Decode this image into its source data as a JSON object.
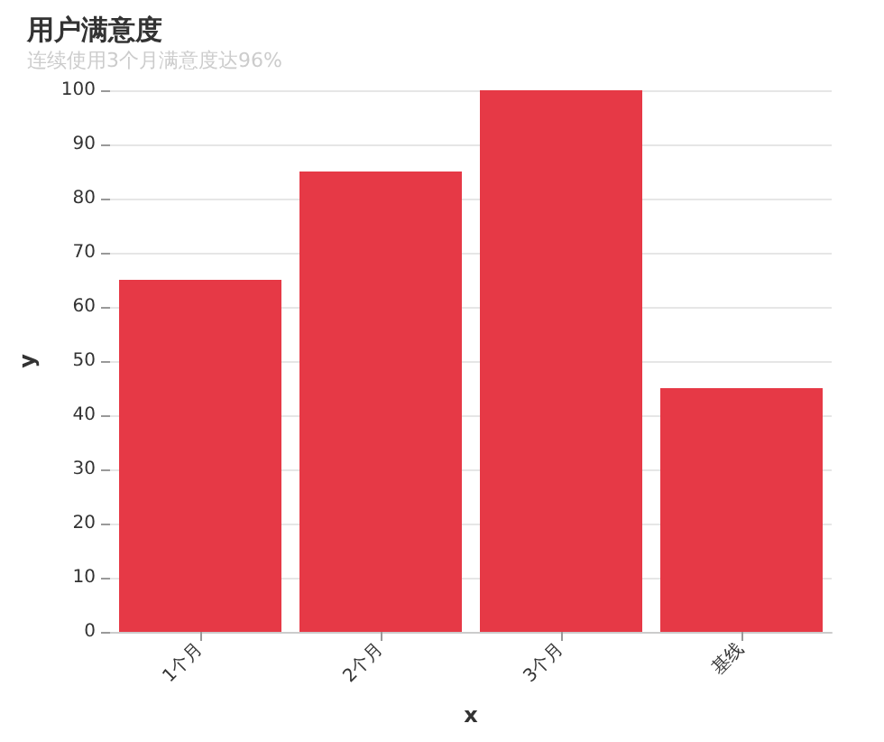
{
  "chart_data": {
    "type": "bar",
    "title": "用户满意度",
    "subtitle": "连续使用3个月满意度达96%",
    "xlabel": "x",
    "ylabel": "y",
    "categories": [
      "1个月",
      "2个月",
      "3个月",
      "基线"
    ],
    "values": [
      65,
      85,
      100,
      45
    ],
    "color": "#e63946",
    "ylim": [
      0,
      100
    ],
    "yticks": [
      0,
      10,
      20,
      30,
      40,
      50,
      60,
      70,
      80,
      90,
      100
    ],
    "grid": "y"
  }
}
